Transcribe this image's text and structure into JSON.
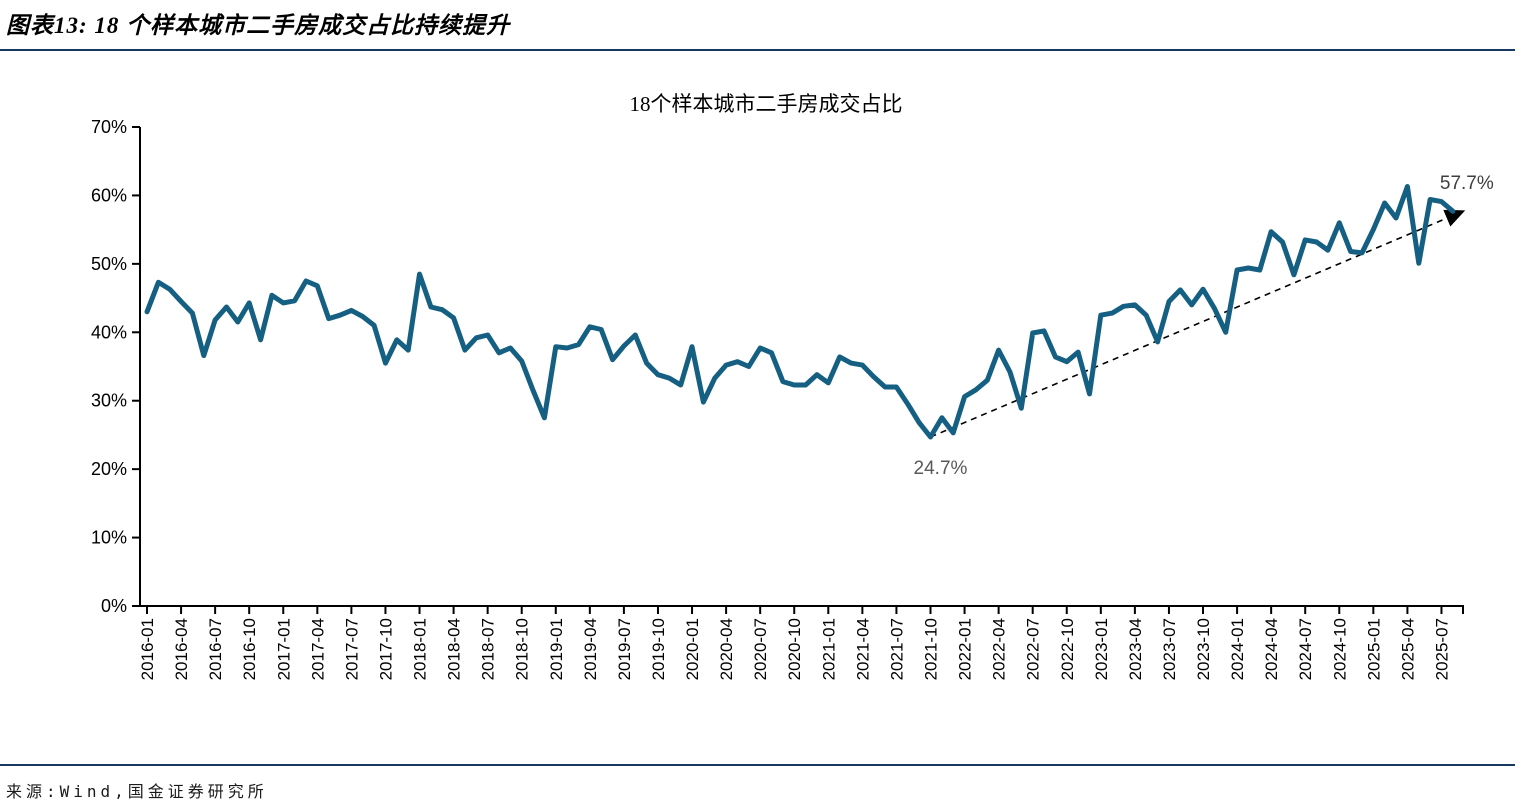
{
  "header": {
    "title": "图表13: 18 个样本城市二手房成交占比持续提升"
  },
  "footer": {
    "source": "来源:Wind,国金证券研究所"
  },
  "colors": {
    "rule": "#17375E",
    "axis": "#000000",
    "tick_label": "#000000"
  },
  "chart_data": {
    "type": "line",
    "title": "18个样本城市二手房成交占比",
    "series_color": "#156082",
    "grid": false,
    "legend": "none",
    "ylim": [
      0,
      70
    ],
    "ytick_labels": [
      "0%",
      "10%",
      "20%",
      "30%",
      "40%",
      "50%",
      "60%",
      "70%"
    ],
    "x_start": "2016-01",
    "x_tick_labels": [
      "2016-01",
      "2016-04",
      "2016-07",
      "2016-10",
      "2017-01",
      "2017-04",
      "2017-07",
      "2017-10",
      "2018-01",
      "2018-04",
      "2018-07",
      "2018-10",
      "2019-01",
      "2019-04",
      "2019-07",
      "2019-10",
      "2020-01",
      "2020-04",
      "2020-07",
      "2020-10",
      "2021-01",
      "2021-04",
      "2021-07",
      "2021-10",
      "2022-01",
      "2022-04",
      "2022-07",
      "2022-10",
      "2023-01",
      "2023-04",
      "2023-07",
      "2023-10",
      "2024-01",
      "2024-04",
      "2024-07",
      "2024-10",
      "2025-01",
      "2025-04",
      "2025-07"
    ],
    "values": [
      43.0,
      47.3,
      46.3,
      44.5,
      42.8,
      36.6,
      41.8,
      43.7,
      41.5,
      44.3,
      38.9,
      45.4,
      44.3,
      44.6,
      47.5,
      46.8,
      42.0,
      42.5,
      43.2,
      42.3,
      41.0,
      35.5,
      38.9,
      37.4,
      48.5,
      43.7,
      43.3,
      42.1,
      37.4,
      39.2,
      39.6,
      37.0,
      37.7,
      35.8,
      31.5,
      27.5,
      37.9,
      37.7,
      38.2,
      40.8,
      40.4,
      36.0,
      38.0,
      39.6,
      35.5,
      33.8,
      33.3,
      32.3,
      37.9,
      29.8,
      33.3,
      35.2,
      35.7,
      35.0,
      37.7,
      37.0,
      32.8,
      32.3,
      32.3,
      33.8,
      32.6,
      36.4,
      35.5,
      35.2,
      33.5,
      32.0,
      32.0,
      29.5,
      26.8,
      24.7,
      27.5,
      25.3,
      30.6,
      31.6,
      33.0,
      37.4,
      34.2,
      28.9,
      39.9,
      40.2,
      36.4,
      35.7,
      37.1,
      31.0,
      42.5,
      42.8,
      43.8,
      44.0,
      42.5,
      38.6,
      44.5,
      46.2,
      44.0,
      46.3,
      43.5,
      40.0,
      49.1,
      49.4,
      49.1,
      54.7,
      53.2,
      48.4,
      53.5,
      53.2,
      52.0,
      56.0,
      51.8,
      51.6,
      55.0,
      58.9,
      56.7,
      61.3,
      50.1,
      59.4,
      59.1,
      57.7
    ],
    "annotations": [
      {
        "text": "24.7%",
        "at": "2021-10",
        "position": "below",
        "color": "#595959"
      },
      {
        "text": "57.7%",
        "at": "2025-08",
        "position": "above",
        "color": "#3f3f3f"
      }
    ],
    "trendline": {
      "style": "dashed",
      "arrow": true,
      "color": "#000000",
      "from": "2021-10",
      "to": "2025-08"
    }
  }
}
